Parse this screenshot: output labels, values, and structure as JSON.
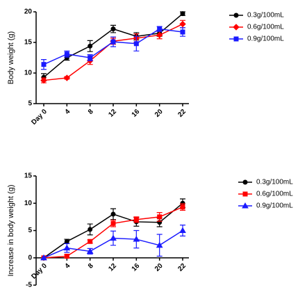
{
  "chart_data": [
    {
      "type": "line",
      "y_label": "Body weight (g)",
      "categories": [
        "Day 0",
        "4",
        "8",
        "12",
        "16",
        "20",
        "22"
      ],
      "ylim": [
        5,
        20
      ],
      "yticks": [
        5,
        10,
        15,
        20
      ],
      "series": [
        {
          "name": "0.3g/100mL",
          "color": "#000000",
          "marker": "circle",
          "values": [
            9.3,
            12.5,
            14.4,
            17.2,
            16.0,
            16.5,
            19.7
          ],
          "errors": [
            0.6,
            0.4,
            0.9,
            0.6,
            0.6,
            0.5,
            0.3
          ]
        },
        {
          "name": "0.6g/100mL",
          "color": "#ff0000",
          "marker": "diamond",
          "values": [
            8.8,
            9.2,
            12.0,
            15.2,
            15.7,
            16.2,
            18.0
          ],
          "errors": [
            0.4,
            0.2,
            0.6,
            0.5,
            0.7,
            0.6,
            0.6
          ]
        },
        {
          "name": "0.9g/100mL",
          "color": "#1a1aff",
          "marker": "square",
          "values": [
            11.4,
            13.1,
            12.5,
            15.1,
            14.8,
            17.2,
            16.7
          ],
          "errors": [
            0.8,
            0.5,
            0.5,
            0.8,
            1.2,
            0.4,
            0.7
          ]
        }
      ]
    },
    {
      "type": "line",
      "y_label": "Increase in body weight (g)",
      "categories": [
        "Day 0",
        "4",
        "8",
        "12",
        "16",
        "20",
        "22"
      ],
      "ylim": [
        -5,
        15
      ],
      "yticks": [
        -5,
        0,
        5,
        10,
        15
      ],
      "series": [
        {
          "name": "0.3g/100mL",
          "color": "#000000",
          "marker": "circle",
          "values": [
            0,
            3.0,
            5.2,
            8.0,
            6.6,
            6.5,
            10.0
          ],
          "errors": [
            0,
            0.4,
            1.0,
            1.0,
            0.8,
            0.8,
            0.8
          ]
        },
        {
          "name": "0.6g/100mL",
          "color": "#ff0000",
          "marker": "square",
          "values": [
            0,
            0.3,
            3.0,
            6.3,
            7.0,
            7.5,
            9.3
          ],
          "errors": [
            0,
            0.3,
            0.3,
            0.6,
            0.5,
            0.8,
            0.6
          ]
        },
        {
          "name": "0.9g/100mL",
          "color": "#1a1aff",
          "marker": "triangle",
          "values": [
            0,
            1.8,
            1.2,
            3.6,
            3.4,
            2.3,
            5.0
          ],
          "errors": [
            0,
            0.8,
            0.5,
            1.3,
            1.6,
            2.0,
            1.0
          ]
        }
      ]
    }
  ]
}
